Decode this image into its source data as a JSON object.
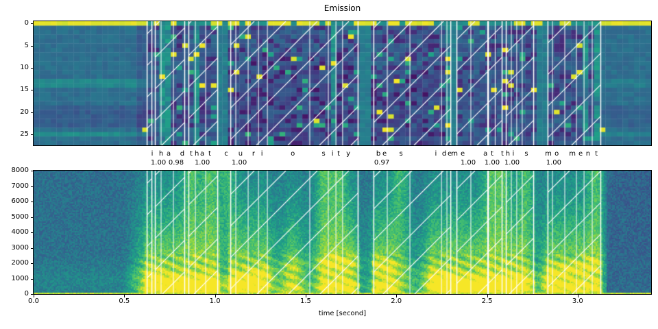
{
  "figure": {
    "title": "Emission",
    "xlabel": "time [second]"
  },
  "palette": {
    "colormap": "viridis",
    "hatch_color": "#ffffff",
    "blank_row_color": "#fde725",
    "background": "#ffffff",
    "axis_color": "#000000"
  },
  "chart_data": [
    {
      "type": "heatmap",
      "title": "Emission",
      "colormap": "viridis",
      "xlim": [
        0,
        3.405
      ],
      "n_rows": 28,
      "yticks": [
        0,
        5,
        10,
        15,
        20,
        25
      ],
      "ytick_labels": [
        "0",
        "5",
        "10",
        "15",
        "20",
        "25"
      ],
      "description": "CTC emission probabilities per frame; row 0 (blank token) is a saturated yellow band across the top with dips at emitted characters; white hatched vertical spans mark aligned token segments",
      "annotations": {
        "chars": [
          {
            "c": "i",
            "t": 0.654
          },
          {
            "c": "h",
            "t": 0.703
          },
          {
            "c": "a",
            "t": 0.745
          },
          {
            "c": "d",
            "t": 0.82
          },
          {
            "c": "t",
            "t": 0.869
          },
          {
            "c": "h",
            "t": 0.9
          },
          {
            "c": "a",
            "t": 0.93
          },
          {
            "c": "t",
            "t": 0.971
          },
          {
            "c": "c",
            "t": 1.062
          },
          {
            "c": "u",
            "t": 1.141
          },
          {
            "c": "r",
            "t": 1.213
          },
          {
            "c": "i",
            "t": 1.259
          },
          {
            "c": "o",
            "t": 1.429
          },
          {
            "c": "s",
            "t": 1.599
          },
          {
            "c": "i",
            "t": 1.648
          },
          {
            "c": "t",
            "t": 1.682
          },
          {
            "c": "y",
            "t": 1.735
          },
          {
            "c": "b",
            "t": 1.901
          },
          {
            "c": "e",
            "t": 1.935
          },
          {
            "c": "s",
            "t": 2.026
          },
          {
            "c": "i",
            "t": 2.218
          },
          {
            "c": "d",
            "t": 2.264
          },
          {
            "c": "e",
            "t": 2.294
          },
          {
            "c": "m",
            "t": 2.321
          },
          {
            "c": "e",
            "t": 2.366
          },
          {
            "c": "a",
            "t": 2.491
          },
          {
            "c": "t",
            "t": 2.528
          },
          {
            "c": "t",
            "t": 2.585
          },
          {
            "c": "h",
            "t": 2.615
          },
          {
            "c": "i",
            "t": 2.645
          },
          {
            "c": "s",
            "t": 2.717
          },
          {
            "c": "m",
            "t": 2.838
          },
          {
            "c": "o",
            "t": 2.884
          },
          {
            "c": "m",
            "t": 2.971
          },
          {
            "c": "e",
            "t": 3.016
          },
          {
            "c": "n",
            "t": 3.057
          },
          {
            "c": "t",
            "t": 3.103
          }
        ],
        "scores": [
          {
            "label": "1.00",
            "t": 0.688
          },
          {
            "label": "0.98",
            "t": 0.786
          },
          {
            "label": "1.00",
            "t": 0.93
          },
          {
            "label": "1.00",
            "t": 1.134
          },
          {
            "label": "0.97",
            "t": 1.92
          },
          {
            "label": "1.00",
            "t": 2.396
          },
          {
            "label": "1.00",
            "t": 2.528
          },
          {
            "label": "1.00",
            "t": 2.638
          },
          {
            "label": "1.00",
            "t": 2.868
          }
        ]
      },
      "segments": [
        {
          "word": "i",
          "score": "1.00",
          "start": 0.624,
          "end": 0.654,
          "char_bounds": []
        },
        {
          "word": "had",
          "score": "0.98",
          "start": 0.669,
          "end": 0.835,
          "char_bounds": [
            0.703,
            0.771
          ]
        },
        {
          "word": "that",
          "score": "1.00",
          "start": 0.854,
          "end": 1.017,
          "char_bounds": [
            0.892,
            0.949
          ]
        },
        {
          "word": "curiosity",
          "score": "1.00",
          "start": 1.085,
          "end": 1.791,
          "char_bounds": [
            1.115,
            1.183,
            1.24,
            1.289,
            1.523,
            1.625,
            1.667,
            1.704
          ]
        },
        {
          "word": "beside",
          "score": "0.97",
          "start": 1.874,
          "end": 2.302,
          "char_bounds": [
            1.95,
            2.075,
            2.249,
            2.279
          ]
        },
        {
          "word": "me",
          "score": "1.00",
          "start": 2.332,
          "end": 2.506,
          "char_bounds": [
            2.411
          ]
        },
        {
          "word": "at",
          "score": "1.00",
          "start": 2.506,
          "end": 2.585,
          "char_bounds": [
            2.545
          ]
        },
        {
          "word": "this",
          "score": "1.00",
          "start": 2.604,
          "end": 2.759,
          "char_bounds": [
            2.634,
            2.664,
            2.694
          ]
        },
        {
          "word": "moment",
          "score": "1.00",
          "start": 2.834,
          "end": 3.129,
          "char_bounds": [
            2.861,
            2.929,
            2.993,
            3.035,
            3.08
          ]
        }
      ]
    },
    {
      "type": "heatmap",
      "subtype": "spectrogram",
      "colormap": "viridis",
      "xlabel": "time [second]",
      "xlim": [
        0,
        3.405
      ],
      "ylim": [
        0,
        8000
      ],
      "xticks": [
        0,
        0.5,
        1,
        1.5,
        2,
        2.5,
        3
      ],
      "xtick_labels": [
        "0.0",
        "0.5",
        "1.0",
        "1.5",
        "2.0",
        "2.5",
        "3.0"
      ],
      "yticks": [
        8000,
        7000,
        6000,
        5000,
        4000,
        3000,
        2000,
        1000,
        0
      ],
      "ytick_labels": [
        "8000",
        "7000",
        "6000",
        "5000",
        "4000",
        "3000",
        "2000",
        "1000",
        "0"
      ],
      "description": "Speech spectrogram of the utterance; quiet teal regions before ~0.6 s and after ~3.15 s, bright yellow-green energy at low frequencies during speech, bright baseline row at 0 Hz; overlaid with the same white hatched alignment spans"
    }
  ]
}
